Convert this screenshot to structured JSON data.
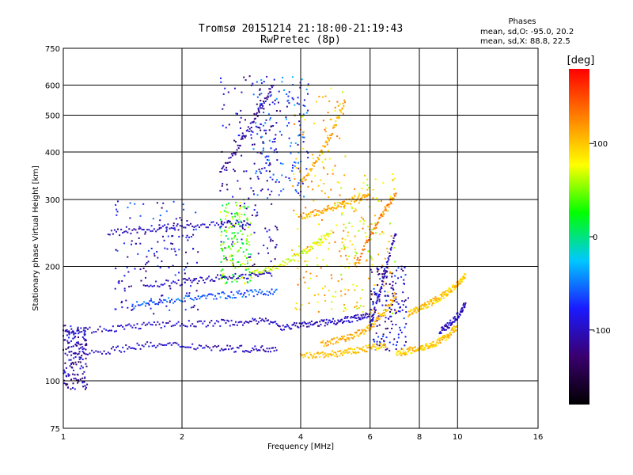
{
  "chart_data": {
    "type": "scatter",
    "title": "Tromsø 20151214 21:18:00-21:19:43",
    "subtitle": "RwPretec (8p)",
    "xlabel": "Frequency [MHz]",
    "ylabel": "Stationary phase Virtual Height [km]",
    "x_scale": "log",
    "y_scale": "log",
    "xlim": [
      1,
      16
    ],
    "ylim": [
      75,
      750
    ],
    "x_ticks": [
      1,
      2,
      4,
      6,
      8,
      10,
      16
    ],
    "x_tick_labels": [
      "1",
      "2",
      "4",
      "6",
      "8",
      "10",
      "16"
    ],
    "y_ticks": [
      75,
      100,
      200,
      300,
      400,
      500,
      600,
      750
    ],
    "y_tick_labels": [
      "75",
      "100",
      "200",
      "300",
      "400",
      "500",
      "600",
      "750"
    ],
    "grid": true,
    "phase_stats": {
      "heading": "Phases",
      "line_o": "mean, sd,O: -95.0, 20.2",
      "line_x": "mean, sd,X:  88.8, 22.5"
    },
    "colorbar": {
      "label": "[deg]",
      "ticks": [
        100,
        0,
        -100
      ],
      "tick_labels": [
        "100",
        "0",
        "-100"
      ],
      "range": [
        -180,
        180
      ],
      "colors": [
        "#000000",
        "#3a006e",
        "#1a1aff",
        "#00c8ff",
        "#00ff00",
        "#ffff00",
        "#ff8000",
        "#ff0000"
      ]
    },
    "traces": [
      {
        "name": "",
        "x": [
          1.0,
          1.3,
          1.6,
          2.0,
          2.5,
          3.0,
          3.5
        ],
        "y": [
          118,
          120,
          124,
          124,
          122,
          121,
          122
        ],
        "phase": -100
      },
      {
        "name": "",
        "x": [
          1.0,
          1.3,
          1.6,
          2.0,
          2.5,
          3.0,
          3.5
        ],
        "y": [
          135,
          137,
          140,
          141,
          142,
          143,
          144
        ],
        "phase": -100
      },
      {
        "name": "",
        "x": [
          1.5,
          1.8,
          2.2,
          2.6,
          3.0,
          3.5
        ],
        "y": [
          158,
          162,
          166,
          168,
          170,
          172
        ],
        "phase": -60
      },
      {
        "name": "",
        "x": [
          1.6,
          2.0,
          2.4,
          2.9,
          3.4
        ],
        "y": [
          178,
          182,
          186,
          189,
          192
        ],
        "phase": -100
      },
      {
        "name": "",
        "x": [
          1.3,
          1.6,
          2.0,
          2.5,
          3.0
        ],
        "y": [
          245,
          250,
          255,
          258,
          260
        ],
        "phase": -100
      },
      {
        "name": "",
        "x": [
          2.5,
          2.8,
          3.1,
          3.4
        ],
        "y": [
          350,
          420,
          500,
          600
        ],
        "phase": -110
      },
      {
        "name": "",
        "x": [
          3.0,
          3.5,
          4.0,
          4.4,
          4.8
        ],
        "y": [
          190,
          200,
          215,
          230,
          245
        ],
        "phase": 70
      },
      {
        "name": "",
        "x": [
          4.0,
          4.5,
          5.0,
          5.5,
          6.0,
          6.6
        ],
        "y": [
          116,
          117,
          118,
          120,
          122,
          124
        ],
        "phase": 100
      },
      {
        "name": "",
        "x": [
          3.5,
          4.0,
          4.5,
          5.0,
          5.5,
          6.0
        ],
        "y": [
          138,
          140,
          142,
          144,
          146,
          150
        ],
        "phase": -100
      },
      {
        "name": "",
        "x": [
          4.5,
          5.0,
          5.5,
          6.0,
          6.5,
          7.0
        ],
        "y": [
          125,
          128,
          132,
          138,
          150,
          170
        ],
        "phase": 110
      },
      {
        "name": "",
        "x": [
          4.0,
          4.5,
          5.0,
          5.5,
          6.0
        ],
        "y": [
          270,
          280,
          290,
          300,
          310
        ],
        "phase": 110
      },
      {
        "name": "",
        "x": [
          4.0,
          4.4,
          4.8,
          5.2
        ],
        "y": [
          330,
          380,
          450,
          550
        ],
        "phase": 110
      },
      {
        "name": "",
        "x": [
          7.0,
          7.5,
          8.0,
          8.5,
          9.0,
          9.5,
          10.0
        ],
        "y": [
          118,
          120,
          122,
          124,
          127,
          132,
          140
        ],
        "phase": 100
      },
      {
        "name": "",
        "x": [
          7.5,
          8.0,
          8.5,
          9.0,
          9.5,
          10.0,
          10.5
        ],
        "y": [
          150,
          155,
          160,
          165,
          172,
          180,
          190
        ],
        "phase": 100
      },
      {
        "name": "",
        "x": [
          9.0,
          9.5,
          10.0,
          10.5
        ],
        "y": [
          135,
          140,
          148,
          160
        ],
        "phase": -100
      },
      {
        "name": "",
        "x": [
          6.0,
          6.3,
          6.6,
          7.0
        ],
        "y": [
          140,
          165,
          200,
          250
        ],
        "phase": -100
      },
      {
        "name": "",
        "x": [
          5.5,
          6.0,
          6.5,
          7.0
        ],
        "y": [
          200,
          240,
          280,
          310
        ],
        "phase": 130
      }
    ],
    "clusters": [
      {
        "x": [
          1.0,
          1.15
        ],
        "y": [
          95,
          140
        ],
        "phase": -110
      },
      {
        "x": [
          1.35,
          2.2
        ],
        "y": [
          150,
          300
        ],
        "phase": -90
      },
      {
        "x": [
          2.5,
          3.5
        ],
        "y": [
          200,
          640
        ],
        "phase": -110
      },
      {
        "x": [
          3.0,
          4.2
        ],
        "y": [
          300,
          640
        ],
        "phase": -70
      },
      {
        "x": [
          3.8,
          5.2
        ],
        "y": [
          150,
          600
        ],
        "phase": 100
      },
      {
        "x": [
          5.0,
          7.0
        ],
        "y": [
          150,
          350
        ],
        "phase": 90
      },
      {
        "x": [
          2.5,
          3.0
        ],
        "y": [
          180,
          300
        ],
        "phase": 40
      },
      {
        "x": [
          6.0,
          7.5
        ],
        "y": [
          120,
          200
        ],
        "phase": -100
      }
    ]
  }
}
